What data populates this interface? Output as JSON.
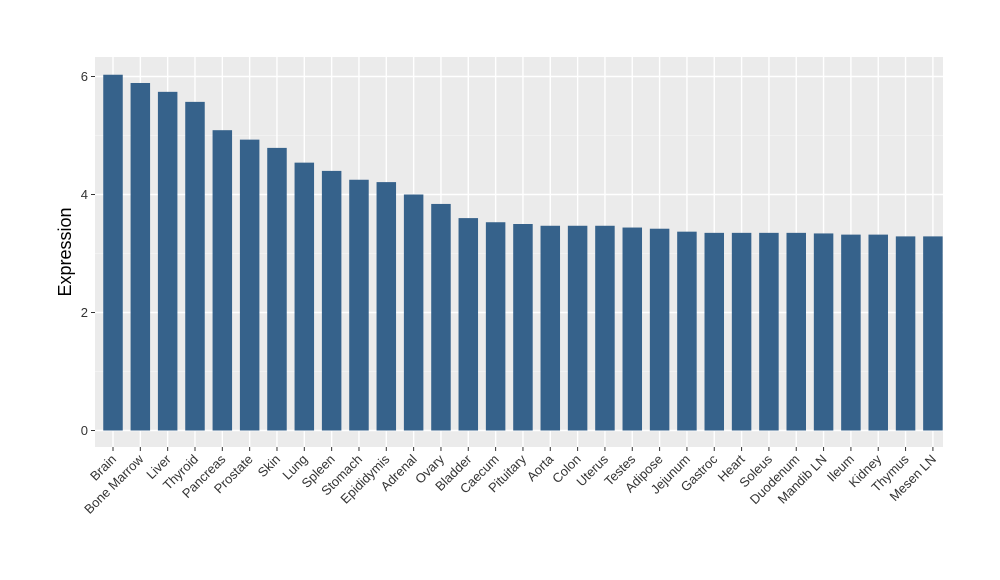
{
  "chart_data": {
    "type": "bar",
    "title": "",
    "xlabel": "",
    "ylabel": "Expression",
    "ylim": [
      0,
      6.2
    ],
    "yticks": [
      0,
      2,
      4,
      6
    ],
    "grid": true,
    "legend": "none",
    "bar_color": "#36628b",
    "panel_color": "#ebebeb",
    "categories": [
      "Brain",
      "Bone Marrow",
      "Liver",
      "Thyroid",
      "Pancreas",
      "Prostate",
      "Skin",
      "Lung",
      "Spleen",
      "Stomach",
      "Epididymis",
      "Adrenal",
      "Ovary",
      "Bladder",
      "Caecum",
      "Pituitary",
      "Aorta",
      "Colon",
      "Uterus",
      "Testes",
      "Adipose",
      "Jejunum",
      "Gastroc",
      "Heart",
      "Soleus",
      "Duodenum",
      "Mandib LN",
      "Ileum",
      "Kidney",
      "Thymus",
      "Mesen LN"
    ],
    "values": [
      6.03,
      5.89,
      5.74,
      5.57,
      5.09,
      4.93,
      4.79,
      4.54,
      4.4,
      4.25,
      4.21,
      4.0,
      3.84,
      3.6,
      3.53,
      3.5,
      3.47,
      3.47,
      3.47,
      3.44,
      3.42,
      3.37,
      3.35,
      3.35,
      3.35,
      3.35,
      3.34,
      3.32,
      3.32,
      3.29,
      3.29
    ]
  }
}
